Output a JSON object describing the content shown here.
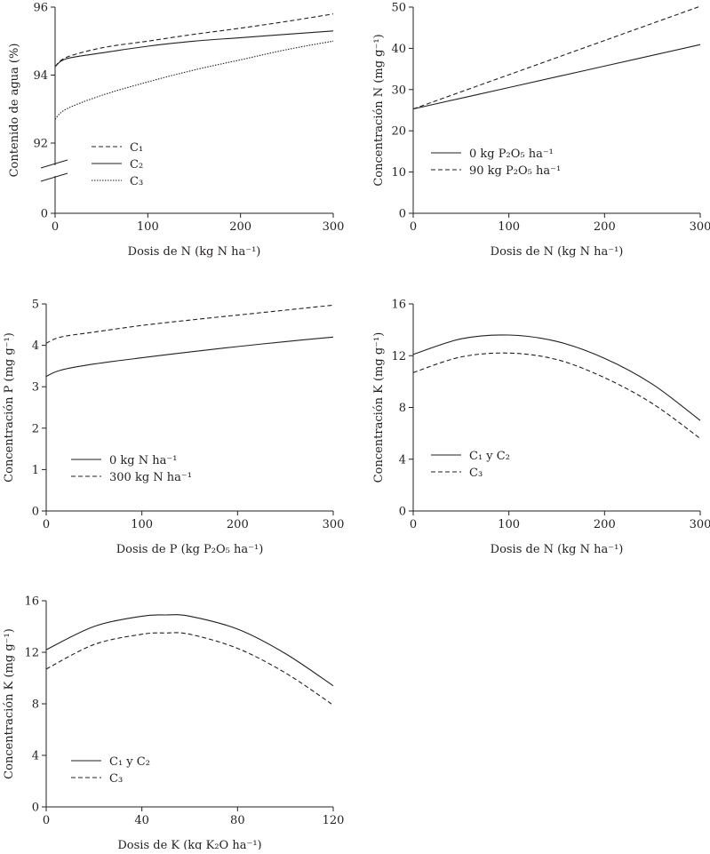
{
  "chart_data": [
    {
      "type": "line",
      "xlabel": "Dosis de N (kg N ha⁻¹)",
      "ylabel": "Contenido de agua (%)",
      "xlim": [
        0,
        300
      ],
      "ylim": [
        90,
        96
      ],
      "y_axis_break": true,
      "x_ticks": [
        "0",
        "100",
        "200",
        "300"
      ],
      "y_ticks": [
        "0",
        "92",
        "94",
        "96"
      ],
      "legend_position": "bottom-left",
      "series": [
        {
          "name": "C₁",
          "style": "dashed",
          "x": [
            0,
            12,
            50,
            100,
            150,
            200,
            250,
            300
          ],
          "y": [
            94.25,
            94.52,
            94.8,
            95.0,
            95.2,
            95.38,
            95.58,
            95.8
          ]
        },
        {
          "name": "C₂",
          "style": "solid",
          "x": [
            0,
            12,
            50,
            100,
            150,
            200,
            250,
            300
          ],
          "y": [
            94.25,
            94.48,
            94.65,
            94.85,
            95.0,
            95.1,
            95.2,
            95.3
          ]
        },
        {
          "name": "C₃",
          "style": "dotted",
          "x": [
            0,
            12,
            50,
            100,
            150,
            200,
            250,
            300
          ],
          "y": [
            92.7,
            93.0,
            93.4,
            93.8,
            94.15,
            94.45,
            94.75,
            95.0
          ]
        }
      ]
    },
    {
      "type": "line",
      "xlabel": "Dosis de N (kg N ha⁻¹)",
      "ylabel": "Concentración N (mg g⁻¹)",
      "xlim": [
        0,
        300
      ],
      "ylim": [
        0,
        50
      ],
      "x_ticks": [
        "0",
        "100",
        "200",
        "300"
      ],
      "y_ticks": [
        "0",
        "10",
        "20",
        "30",
        "40",
        "50"
      ],
      "legend_position": "bottom-left",
      "series": [
        {
          "name": "0 kg P₂O₅ ha⁻¹",
          "style": "solid",
          "x": [
            0,
            100,
            200,
            300
          ],
          "y": [
            25.3,
            30.5,
            35.7,
            40.9
          ]
        },
        {
          "name": "90 kg P₂O₅ ha⁻¹",
          "style": "dashed",
          "x": [
            0,
            100,
            200,
            300
          ],
          "y": [
            25.3,
            33.6,
            41.9,
            50.2
          ]
        }
      ]
    },
    {
      "type": "line",
      "xlabel": "Dosis de P (kg P₂O₅ ha⁻¹)",
      "ylabel": "Concentración P (mg g⁻¹)",
      "xlim": [
        0,
        300
      ],
      "ylim": [
        0,
        5
      ],
      "x_ticks": [
        "0",
        "100",
        "200",
        "300"
      ],
      "y_ticks": [
        "0",
        "1",
        "2",
        "3",
        "4",
        "5"
      ],
      "legend_position": "bottom-left",
      "series": [
        {
          "name": "0 kg N ha⁻¹",
          "style": "solid",
          "x": [
            0,
            15,
            50,
            100,
            150,
            200,
            250,
            300
          ],
          "y": [
            3.25,
            3.4,
            3.55,
            3.7,
            3.84,
            3.97,
            4.09,
            4.2
          ]
        },
        {
          "name": "300 kg N ha⁻¹",
          "style": "dashed",
          "x": [
            0,
            15,
            50,
            100,
            150,
            200,
            250,
            300
          ],
          "y": [
            4.05,
            4.2,
            4.32,
            4.48,
            4.61,
            4.73,
            4.85,
            4.97
          ]
        }
      ]
    },
    {
      "type": "line",
      "xlabel": "Dosis de N (kg N ha⁻¹)",
      "ylabel": "Concentración K (mg g⁻¹)",
      "xlim": [
        0,
        300
      ],
      "ylim": [
        0,
        16
      ],
      "x_ticks": [
        "0",
        "100",
        "200",
        "300"
      ],
      "y_ticks": [
        "0",
        "4",
        "8",
        "12",
        "16"
      ],
      "legend_position": "bottom-left",
      "series": [
        {
          "name": "C₁ y C₂",
          "style": "solid",
          "x": [
            0,
            50,
            100,
            150,
            200,
            250,
            300
          ],
          "y": [
            12.1,
            13.3,
            13.6,
            13.1,
            11.8,
            9.8,
            7.0
          ]
        },
        {
          "name": "C₃",
          "style": "dashed",
          "x": [
            0,
            50,
            100,
            150,
            200,
            250,
            300
          ],
          "y": [
            10.7,
            11.9,
            12.2,
            11.7,
            10.3,
            8.3,
            5.6
          ]
        }
      ]
    },
    {
      "type": "line",
      "xlabel": "Dosis de K (kg K₂O ha⁻¹)",
      "ylabel": "Concentración K (mg g⁻¹)",
      "xlim": [
        0,
        120
      ],
      "ylim": [
        0,
        16
      ],
      "x_ticks": [
        "0",
        "40",
        "80",
        "120"
      ],
      "y_ticks": [
        "0",
        "4",
        "8",
        "12",
        "16"
      ],
      "legend_position": "bottom-left",
      "series": [
        {
          "name": "C₁ y C₂",
          "style": "solid",
          "x": [
            0,
            20,
            40,
            50,
            60,
            80,
            100,
            120
          ],
          "y": [
            12.2,
            14.0,
            14.8,
            14.9,
            14.8,
            13.8,
            11.9,
            9.4
          ]
        },
        {
          "name": "C₃",
          "style": "dashed",
          "x": [
            0,
            20,
            40,
            50,
            60,
            80,
            100,
            120
          ],
          "y": [
            10.7,
            12.6,
            13.4,
            13.5,
            13.4,
            12.3,
            10.4,
            7.9
          ]
        }
      ]
    }
  ]
}
